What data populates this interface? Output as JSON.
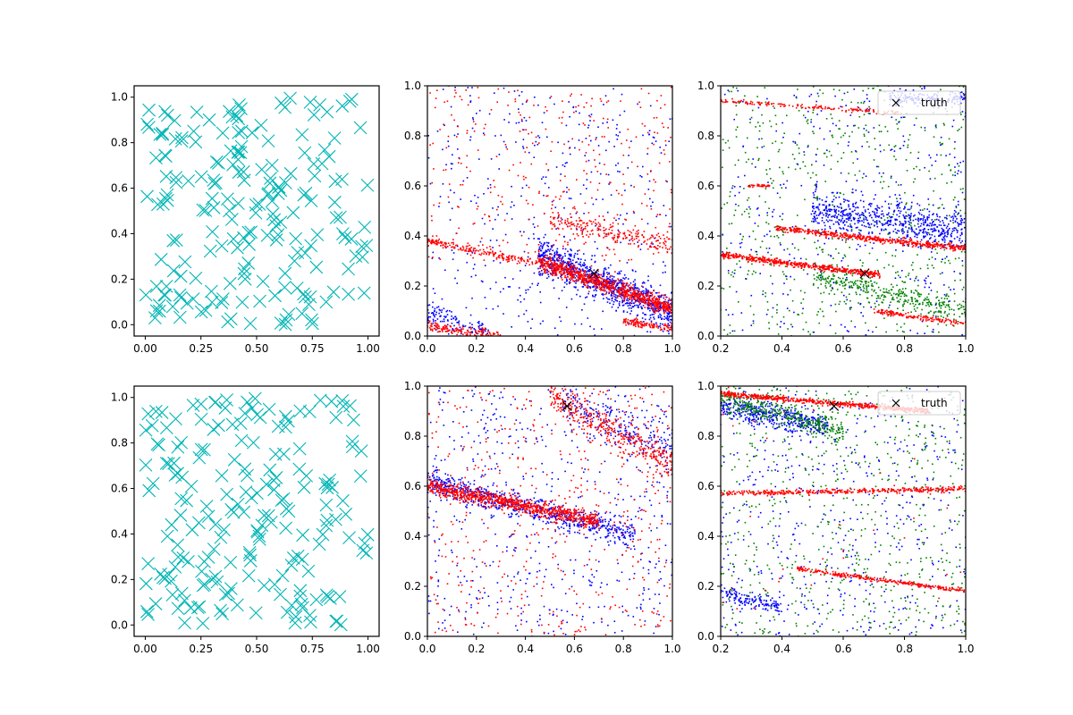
{
  "chart_data": [
    {
      "id": "r1c1",
      "type": "scatter",
      "marker": "x-large",
      "color": "#00b5b5",
      "xlim": [
        -0.05,
        1.05
      ],
      "ylim": [
        -0.05,
        1.05
      ],
      "xticks": [
        "0.00",
        "0.25",
        "0.50",
        "0.75",
        "1.00"
      ],
      "xtick_values": [
        0,
        0.25,
        0.5,
        0.75,
        1.0
      ],
      "yticks": [
        "0.0",
        "0.2",
        "0.4",
        "0.6",
        "0.8",
        "1.0"
      ],
      "ytick_values": [
        0,
        0.2,
        0.4,
        0.6,
        0.8,
        1.0
      ],
      "series": [
        {
          "uniform_random": true,
          "count": 200,
          "seed": 11,
          "x_range": [
            0,
            1
          ],
          "y_range": [
            0,
            1
          ]
        }
      ]
    },
    {
      "id": "r1c2",
      "type": "scatter",
      "marker": "dot",
      "xlim": [
        0,
        1
      ],
      "ylim": [
        0,
        1
      ],
      "xticks": [
        "0.0",
        "0.2",
        "0.4",
        "0.6",
        "0.8",
        "1.0"
      ],
      "xtick_values": [
        0,
        0.2,
        0.4,
        0.6,
        0.8,
        1.0
      ],
      "yticks": [
        "0.0",
        "0.2",
        "0.4",
        "0.6",
        "0.8",
        "1.0"
      ],
      "ytick_values": [
        0,
        0.2,
        0.4,
        0.6,
        0.8,
        1.0
      ],
      "series": [
        {
          "color": "#0000ff",
          "count": 450,
          "seed": 21,
          "uniform_random": true
        },
        {
          "color": "#0000ff",
          "count": 900,
          "seed": 22,
          "band": {
            "x0": 0.45,
            "y0": 0.33,
            "x1": 1.0,
            "y1": 0.09,
            "width": 0.07
          }
        },
        {
          "color": "#0000ff",
          "count": 120,
          "seed": 23,
          "band": {
            "x0": 0.0,
            "y0": 0.1,
            "x1": 0.25,
            "y1": 0.0,
            "width": 0.05
          }
        },
        {
          "color": "#ff0000",
          "count": 350,
          "seed": 24,
          "uniform_random": true,
          "y_range": [
            0.3,
            1.0
          ]
        },
        {
          "color": "#ff0000",
          "count": 900,
          "seed": 25,
          "band": {
            "x0": 0.45,
            "y0": 0.3,
            "x1": 1.0,
            "y1": 0.11,
            "width": 0.035
          }
        },
        {
          "color": "#ff0000",
          "count": 180,
          "seed": 26,
          "band": {
            "x0": 0.0,
            "y0": 0.38,
            "x1": 0.45,
            "y1": 0.29,
            "width": 0.015
          }
        },
        {
          "color": "#ff0000",
          "count": 220,
          "seed": 27,
          "band": {
            "x0": 0.5,
            "y0": 0.47,
            "x1": 1.0,
            "y1": 0.36,
            "width": 0.04
          }
        },
        {
          "color": "#ff0000",
          "count": 160,
          "seed": 28,
          "band": {
            "x0": 0.0,
            "y0": 0.04,
            "x1": 0.3,
            "y1": 0.0,
            "width": 0.02
          }
        },
        {
          "color": "#ff0000",
          "count": 120,
          "seed": 29,
          "band": {
            "x0": 0.8,
            "y0": 0.06,
            "x1": 1.0,
            "y1": 0.03,
            "width": 0.015
          }
        }
      ],
      "truth": {
        "x": 0.68,
        "y": 0.25
      }
    },
    {
      "id": "r1c3",
      "type": "scatter",
      "marker": "dot",
      "xlim": [
        0.2,
        1.0
      ],
      "ylim": [
        0,
        1
      ],
      "xticks": [
        "0.2",
        "0.4",
        "0.6",
        "0.8",
        "1.0"
      ],
      "xtick_values": [
        0.2,
        0.4,
        0.6,
        0.8,
        1.0
      ],
      "yticks": [
        "0.0",
        "0.2",
        "0.4",
        "0.6",
        "0.8",
        "1.0"
      ],
      "ytick_values": [
        0,
        0.2,
        0.4,
        0.6,
        0.8,
        1.0
      ],
      "series": [
        {
          "color": "#008000",
          "count": 650,
          "seed": 31,
          "uniform_random": true
        },
        {
          "color": "#008000",
          "count": 350,
          "seed": 32,
          "band": {
            "x0": 0.5,
            "y0": 0.24,
            "x1": 1.0,
            "y1": 0.1,
            "width": 0.05
          }
        },
        {
          "color": "#0000ff",
          "count": 350,
          "seed": 33,
          "uniform_random": true
        },
        {
          "color": "#0000ff",
          "count": 650,
          "seed": 34,
          "band": {
            "x0": 0.5,
            "y0": 0.5,
            "x1": 1.0,
            "y1": 0.42,
            "width": 0.08
          }
        },
        {
          "color": "#0000ff",
          "count": 150,
          "seed": 35,
          "band": {
            "x0": 0.75,
            "y0": 0.95,
            "x1": 1.0,
            "y1": 0.95,
            "width": 0.03
          }
        },
        {
          "color": "#ff0000",
          "count": 500,
          "seed": 36,
          "band": {
            "x0": 0.2,
            "y0": 0.325,
            "x1": 0.72,
            "y1": 0.245,
            "width": 0.012
          }
        },
        {
          "color": "#ff0000",
          "count": 500,
          "seed": 37,
          "band": {
            "x0": 0.38,
            "y0": 0.43,
            "x1": 1.0,
            "y1": 0.35,
            "width": 0.012
          }
        },
        {
          "color": "#ff0000",
          "count": 160,
          "seed": 38,
          "band": {
            "x0": 0.2,
            "y0": 0.94,
            "x1": 0.8,
            "y1": 0.89,
            "width": 0.008
          }
        },
        {
          "color": "#ff0000",
          "count": 160,
          "seed": 39,
          "band": {
            "x0": 0.7,
            "y0": 0.1,
            "x1": 1.0,
            "y1": 0.05,
            "width": 0.01
          }
        },
        {
          "color": "#ff0000",
          "count": 40,
          "seed": 40,
          "band": {
            "x0": 0.29,
            "y0": 0.6,
            "x1": 0.36,
            "y1": 0.6,
            "width": 0.005
          }
        }
      ],
      "truth": {
        "x": 0.67,
        "y": 0.25
      },
      "legend": {
        "label": "truth",
        "position": "top-right"
      }
    },
    {
      "id": "r2c1",
      "type": "scatter",
      "marker": "x-large",
      "color": "#00b5b5",
      "xlim": [
        -0.05,
        1.05
      ],
      "ylim": [
        -0.05,
        1.05
      ],
      "xticks": [
        "0.00",
        "0.25",
        "0.50",
        "0.75",
        "1.00"
      ],
      "xtick_values": [
        0,
        0.25,
        0.5,
        0.75,
        1.0
      ],
      "yticks": [
        "0.0",
        "0.2",
        "0.4",
        "0.6",
        "0.8",
        "1.0"
      ],
      "ytick_values": [
        0,
        0.2,
        0.4,
        0.6,
        0.8,
        1.0
      ],
      "series": [
        {
          "uniform_random": true,
          "count": 200,
          "seed": 51,
          "x_range": [
            0,
            1
          ],
          "y_range": [
            0,
            1
          ]
        }
      ]
    },
    {
      "id": "r2c2",
      "type": "scatter",
      "marker": "dot",
      "xlim": [
        0,
        1
      ],
      "ylim": [
        0,
        1
      ],
      "xticks": [
        "0.0",
        "0.2",
        "0.4",
        "0.6",
        "0.8",
        "1.0"
      ],
      "xtick_values": [
        0,
        0.2,
        0.4,
        0.6,
        0.8,
        1.0
      ],
      "yticks": [
        "0.0",
        "0.2",
        "0.4",
        "0.6",
        "0.8",
        "1.0"
      ],
      "ytick_values": [
        0,
        0.2,
        0.4,
        0.6,
        0.8,
        1.0
      ],
      "series": [
        {
          "color": "#0000ff",
          "count": 550,
          "seed": 61,
          "uniform_random": true
        },
        {
          "color": "#0000ff",
          "count": 700,
          "seed": 62,
          "band": {
            "x0": 0.0,
            "y0": 0.62,
            "x1": 0.85,
            "y1": 0.4,
            "width": 0.05
          }
        },
        {
          "color": "#0000ff",
          "count": 200,
          "seed": 63,
          "band": {
            "x0": 0.55,
            "y0": 0.95,
            "x1": 1.0,
            "y1": 0.75,
            "width": 0.08
          }
        },
        {
          "color": "#ff0000",
          "count": 500,
          "seed": 64,
          "uniform_random": true
        },
        {
          "color": "#ff0000",
          "count": 900,
          "seed": 65,
          "band": {
            "x0": 0.0,
            "y0": 0.6,
            "x1": 0.7,
            "y1": 0.46,
            "width": 0.03
          }
        },
        {
          "color": "#ff0000",
          "count": 400,
          "seed": 66,
          "band": {
            "x0": 0.5,
            "y0": 0.97,
            "x1": 1.0,
            "y1": 0.68,
            "width": 0.07
          }
        }
      ],
      "truth": {
        "x": 0.57,
        "y": 0.92
      }
    },
    {
      "id": "r2c3",
      "type": "scatter",
      "marker": "dot",
      "xlim": [
        0.2,
        1.0
      ],
      "ylim": [
        0,
        1
      ],
      "xticks": [
        "0.2",
        "0.4",
        "0.6",
        "0.8",
        "1.0"
      ],
      "xtick_values": [
        0.2,
        0.4,
        0.6,
        0.8,
        1.0
      ],
      "yticks": [
        "0.0",
        "0.2",
        "0.4",
        "0.6",
        "0.8",
        "1.0"
      ],
      "ytick_values": [
        0,
        0.2,
        0.4,
        0.6,
        0.8,
        1.0
      ],
      "series": [
        {
          "color": "#0000ff",
          "count": 500,
          "seed": 71,
          "uniform_random": true
        },
        {
          "color": "#0000ff",
          "count": 400,
          "seed": 72,
          "band": {
            "x0": 0.2,
            "y0": 0.92,
            "x1": 0.55,
            "y1": 0.84,
            "width": 0.05
          }
        },
        {
          "color": "#0000ff",
          "count": 150,
          "seed": 73,
          "band": {
            "x0": 0.2,
            "y0": 0.17,
            "x1": 0.4,
            "y1": 0.12,
            "width": 0.03
          }
        },
        {
          "color": "#008000",
          "count": 650,
          "seed": 74,
          "uniform_random": true
        },
        {
          "color": "#008000",
          "count": 350,
          "seed": 75,
          "band": {
            "x0": 0.2,
            "y0": 0.95,
            "x1": 0.6,
            "y1": 0.82,
            "width": 0.05
          }
        },
        {
          "color": "#ff0000",
          "count": 600,
          "seed": 76,
          "band": {
            "x0": 0.2,
            "y0": 0.97,
            "x1": 0.88,
            "y1": 0.9,
            "width": 0.01
          }
        },
        {
          "color": "#ff0000",
          "count": 400,
          "seed": 77,
          "band": {
            "x0": 0.2,
            "y0": 0.57,
            "x1": 1.0,
            "y1": 0.59,
            "width": 0.01
          }
        },
        {
          "color": "#ff0000",
          "count": 300,
          "seed": 78,
          "band": {
            "x0": 0.45,
            "y0": 0.27,
            "x1": 1.0,
            "y1": 0.18,
            "width": 0.008
          }
        },
        {
          "color": "#ff0000",
          "count": 40,
          "seed": 79,
          "uniform_random": true
        }
      ],
      "truth": {
        "x": 0.57,
        "y": 0.92
      },
      "legend": {
        "label": "truth",
        "position": "top-right"
      }
    }
  ]
}
